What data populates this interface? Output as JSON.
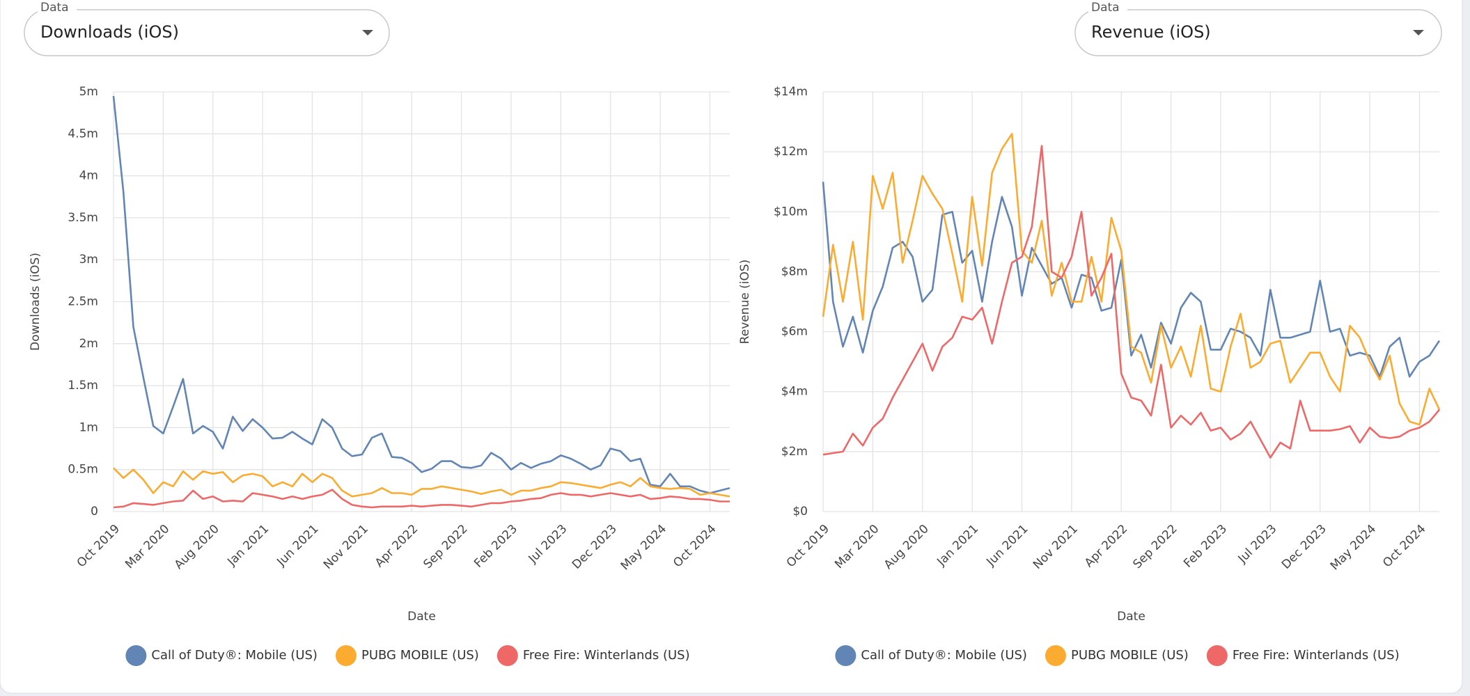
{
  "controls": [
    {
      "label": "Data",
      "value": "Downloads (iOS)"
    },
    {
      "label": "Data",
      "value": "Revenue (iOS)"
    }
  ],
  "chart_data": [
    {
      "type": "line",
      "y_label": "Downloads (iOS)",
      "x_label": "Date",
      "categories": [
        "Oct 2019",
        null,
        null,
        null,
        null,
        "Mar 2020",
        null,
        null,
        null,
        null,
        "Aug 2020",
        null,
        null,
        null,
        null,
        "Jan 2021",
        null,
        null,
        null,
        null,
        "Jun 2021",
        null,
        null,
        null,
        null,
        "Nov 2021",
        null,
        null,
        null,
        null,
        "Apr 2022",
        null,
        null,
        null,
        null,
        "Sep 2022",
        null,
        null,
        null,
        null,
        "Feb 2023",
        null,
        null,
        null,
        null,
        "Jul 2023",
        null,
        null,
        null,
        null,
        "Dec 2023",
        null,
        null,
        null,
        null,
        "May 2024",
        null,
        null,
        null,
        null,
        "Oct 2024",
        null,
        null
      ],
      "ylim": [
        0,
        5
      ],
      "yticks": [
        0,
        {
          "value": 0.5,
          "label": "0.5m"
        },
        {
          "value": 1,
          "label": "1m"
        },
        {
          "value": 1.5,
          "label": "1.5m"
        },
        {
          "value": 2,
          "label": "2m"
        },
        {
          "value": 2.5,
          "label": "2.5m"
        },
        {
          "value": 3,
          "label": "3m"
        },
        {
          "value": 3.5,
          "label": "3.5m"
        },
        {
          "value": 4,
          "label": "4m"
        },
        {
          "value": 4.5,
          "label": "4.5m"
        },
        {
          "value": 5,
          "label": "5m"
        }
      ],
      "grid": true,
      "legend": "bottom",
      "series": [
        {
          "name": "Call of Duty®: Mobile (US)",
          "color": "#6185b4",
          "values": [
            4.95,
            3.8,
            2.2,
            1.6,
            1.02,
            0.93,
            1.25,
            1.58,
            0.93,
            1.02,
            0.95,
            0.75,
            1.13,
            0.96,
            1.1,
            1.0,
            0.87,
            0.88,
            0.95,
            0.87,
            0.8,
            1.1,
            1.0,
            0.75,
            0.66,
            0.68,
            0.88,
            0.93,
            0.65,
            0.64,
            0.58,
            0.47,
            0.51,
            0.6,
            0.6,
            0.53,
            0.52,
            0.55,
            0.7,
            0.63,
            0.5,
            0.58,
            0.52,
            0.57,
            0.6,
            0.67,
            0.63,
            0.57,
            0.5,
            0.55,
            0.75,
            0.72,
            0.6,
            0.63,
            0.32,
            0.3,
            0.45,
            0.3,
            0.3,
            0.25,
            0.22,
            0.25,
            0.28
          ]
        },
        {
          "name": "PUBG MOBILE (US)",
          "color": "#fbab30",
          "values": [
            0.52,
            0.4,
            0.5,
            0.38,
            0.22,
            0.35,
            0.3,
            0.48,
            0.38,
            0.48,
            0.45,
            0.47,
            0.35,
            0.43,
            0.45,
            0.42,
            0.3,
            0.35,
            0.3,
            0.45,
            0.35,
            0.45,
            0.4,
            0.25,
            0.18,
            0.2,
            0.22,
            0.28,
            0.22,
            0.22,
            0.2,
            0.27,
            0.27,
            0.3,
            0.28,
            0.26,
            0.24,
            0.21,
            0.24,
            0.26,
            0.2,
            0.25,
            0.25,
            0.28,
            0.3,
            0.35,
            0.34,
            0.32,
            0.3,
            0.28,
            0.32,
            0.35,
            0.3,
            0.4,
            0.3,
            0.28,
            0.27,
            0.28,
            0.27,
            0.2,
            0.22,
            0.2,
            0.18
          ]
        },
        {
          "name": "Free Fire: Winterlands (US)",
          "color": "#ee6868",
          "values": [
            0.05,
            0.06,
            0.1,
            0.09,
            0.08,
            0.1,
            0.12,
            0.13,
            0.25,
            0.15,
            0.18,
            0.12,
            0.13,
            0.12,
            0.22,
            0.2,
            0.18,
            0.15,
            0.18,
            0.15,
            0.18,
            0.2,
            0.26,
            0.15,
            0.08,
            0.06,
            0.05,
            0.06,
            0.06,
            0.06,
            0.07,
            0.06,
            0.07,
            0.08,
            0.08,
            0.07,
            0.06,
            0.08,
            0.1,
            0.1,
            0.12,
            0.13,
            0.15,
            0.16,
            0.2,
            0.22,
            0.2,
            0.2,
            0.18,
            0.2,
            0.22,
            0.2,
            0.18,
            0.2,
            0.15,
            0.16,
            0.18,
            0.17,
            0.15,
            0.15,
            0.14,
            0.12,
            0.12
          ]
        }
      ]
    },
    {
      "type": "line",
      "y_label": "Revenue (iOS)",
      "x_label": "Date",
      "categories": [
        "Oct 2019",
        null,
        null,
        null,
        null,
        "Mar 2020",
        null,
        null,
        null,
        null,
        "Aug 2020",
        null,
        null,
        null,
        null,
        "Jan 2021",
        null,
        null,
        null,
        null,
        "Jun 2021",
        null,
        null,
        null,
        null,
        "Nov 2021",
        null,
        null,
        null,
        null,
        "Apr 2022",
        null,
        null,
        null,
        null,
        "Sep 2022",
        null,
        null,
        null,
        null,
        "Feb 2023",
        null,
        null,
        null,
        null,
        "Jul 2023",
        null,
        null,
        null,
        null,
        "Dec 2023",
        null,
        null,
        null,
        null,
        "May 2024",
        null,
        null,
        null,
        null,
        "Oct 2024",
        null,
        null
      ],
      "ylim": [
        0,
        14
      ],
      "yticks": [
        {
          "value": 0,
          "label": "$0"
        },
        {
          "value": 2,
          "label": "$2m"
        },
        {
          "value": 4,
          "label": "$4m"
        },
        {
          "value": 6,
          "label": "$6m"
        },
        {
          "value": 8,
          "label": "$8m"
        },
        {
          "value": 10,
          "label": "$10m"
        },
        {
          "value": 12,
          "label": "$12m"
        },
        {
          "value": 14,
          "label": "$14m"
        }
      ],
      "grid": true,
      "legend": "bottom",
      "series": [
        {
          "name": "Call of Duty®: Mobile (US)",
          "color": "#6185b4",
          "values": [
            11.0,
            7.0,
            5.5,
            6.5,
            5.3,
            6.7,
            7.5,
            8.8,
            9.0,
            8.5,
            7.0,
            7.4,
            9.9,
            10.0,
            8.3,
            8.7,
            7.0,
            9.0,
            10.5,
            9.5,
            7.2,
            8.8,
            8.2,
            7.6,
            7.8,
            6.8,
            7.9,
            7.8,
            6.7,
            6.8,
            8.4,
            5.2,
            5.9,
            4.8,
            6.3,
            5.6,
            6.8,
            7.3,
            7.0,
            5.4,
            5.4,
            6.1,
            6.0,
            5.8,
            5.2,
            7.4,
            5.8,
            5.8,
            5.9,
            6.0,
            7.7,
            6.0,
            6.1,
            5.2,
            5.3,
            5.2,
            4.5,
            5.5,
            5.8,
            4.5,
            5.0,
            5.2,
            5.7
          ]
        },
        {
          "name": "PUBG MOBILE (US)",
          "color": "#fbab30",
          "values": [
            6.5,
            8.9,
            7.0,
            9.0,
            6.4,
            11.2,
            10.1,
            11.3,
            8.3,
            9.7,
            11.2,
            10.6,
            10.1,
            8.6,
            7.0,
            10.5,
            8.2,
            11.3,
            12.1,
            12.6,
            8.7,
            8.3,
            9.7,
            7.2,
            8.3,
            7.0,
            7.0,
            8.5,
            7.0,
            9.8,
            8.7,
            5.5,
            5.3,
            4.3,
            6.2,
            4.8,
            5.5,
            4.5,
            6.2,
            4.1,
            4.0,
            5.5,
            6.6,
            4.8,
            5.0,
            5.6,
            5.7,
            4.3,
            4.8,
            5.3,
            5.3,
            4.5,
            4.0,
            6.2,
            5.8,
            5.0,
            4.4,
            5.2,
            3.6,
            3.0,
            2.9,
            4.1,
            3.4
          ]
        },
        {
          "name": "Free Fire: Winterlands (US)",
          "color": "#ee6868",
          "values": [
            1.9,
            1.95,
            2.0,
            2.6,
            2.2,
            2.8,
            3.1,
            3.8,
            4.4,
            5.0,
            5.6,
            4.7,
            5.5,
            5.8,
            6.5,
            6.4,
            6.8,
            5.6,
            7.0,
            8.3,
            8.5,
            9.5,
            12.2,
            8.0,
            7.8,
            8.5,
            10.0,
            7.2,
            7.8,
            8.6,
            4.6,
            3.8,
            3.7,
            3.2,
            4.9,
            2.8,
            3.2,
            2.9,
            3.3,
            2.7,
            2.8,
            2.4,
            2.6,
            3.0,
            2.4,
            1.8,
            2.3,
            2.1,
            3.7,
            2.7,
            2.7,
            2.7,
            2.75,
            2.85,
            2.3,
            2.8,
            2.5,
            2.45,
            2.5,
            2.7,
            2.8,
            3.0,
            3.4
          ]
        }
      ]
    }
  ]
}
